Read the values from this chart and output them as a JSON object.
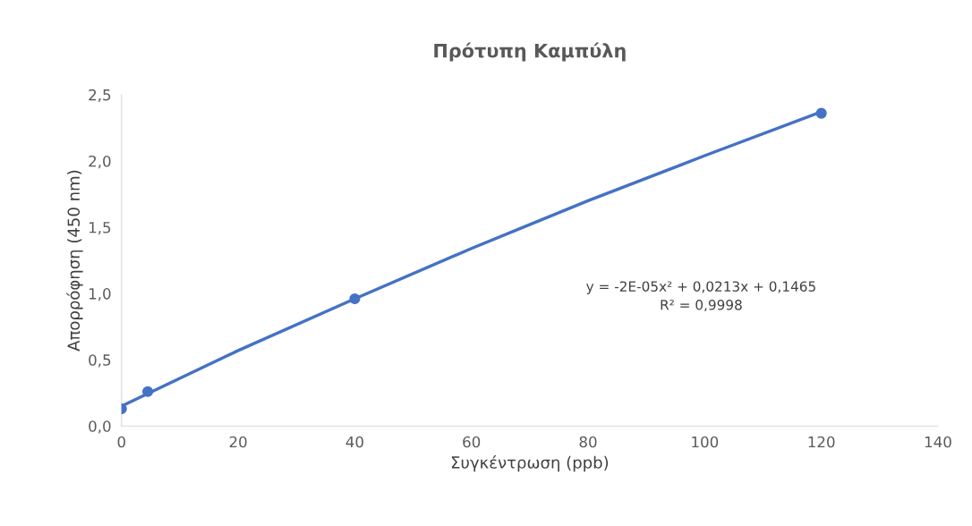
{
  "chart_data": {
    "type": "scatter",
    "title": "Πρότυπη Καμπύλη",
    "xlabel": "Συγκέντρωση (ppb)",
    "ylabel": "Απορρόφηση (450 nm)",
    "series": [
      {
        "color": "#4472c4",
        "marker": "circle",
        "x": [
          0,
          4.5,
          40,
          120
        ],
        "values": [
          0.13,
          0.26,
          0.96,
          2.36
        ]
      },
      {
        "type": "line",
        "color": "#4472c4",
        "line_style": "solid",
        "marker": "none",
        "x": [
          0,
          20,
          40,
          60,
          80,
          100,
          120
        ],
        "values": [
          0.15,
          0.57,
          0.96,
          1.34,
          1.7,
          2.04,
          2.37
        ]
      }
    ],
    "xlim": [
      0,
      140
    ],
    "xticks": [
      0,
      20,
      40,
      60,
      80,
      100,
      120,
      140
    ],
    "ylim": [
      0,
      2.5
    ],
    "yticks": [
      {
        "value": 0,
        "label": "0,0"
      },
      {
        "value": 0.5,
        "label": "0,5"
      },
      {
        "value": 1,
        "label": "1,0"
      },
      {
        "value": 1.5,
        "label": "1,5"
      },
      {
        "value": 2,
        "label": "2,0"
      },
      {
        "value": 2.5,
        "label": "2,5"
      }
    ],
    "grid": false,
    "legend": false,
    "annotations": [
      "y = -2E-05x² + 0,0213x + 0,1465\nR² = 0,9998"
    ]
  }
}
